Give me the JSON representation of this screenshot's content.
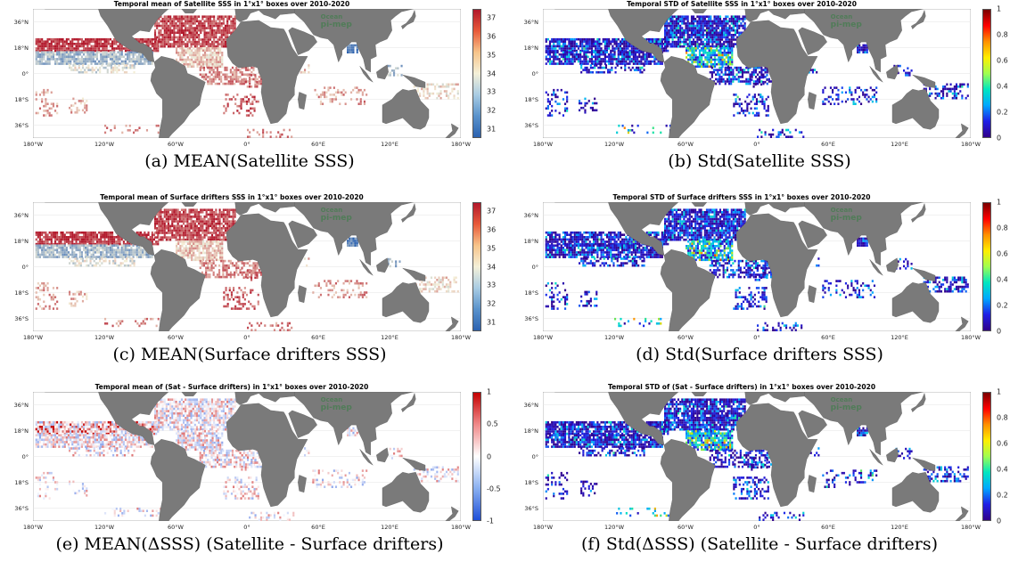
{
  "panels": [
    {
      "title": "Temporal mean of Satellite SSS in 1°x1° boxes over 2010-2020",
      "caption": "(a) MEAN(Satellite SSS)",
      "kind": "mean",
      "colorbar": [
        "37",
        "36",
        "35",
        "34",
        "33",
        "32",
        "31"
      ]
    },
    {
      "title": "Temporal STD of Satellite SSS in 1°x1° boxes over 2010-2020",
      "caption": "(b) Std(Satellite SSS)",
      "kind": "std",
      "colorbar": [
        "1",
        "0.8",
        "0.6",
        "0.4",
        "0.2",
        "0"
      ]
    },
    {
      "title": "Temporal mean of Surface drifters SSS in 1°x1° boxes over 2010-2020",
      "caption": "(c) MEAN(Surface drifters SSS)",
      "kind": "mean",
      "colorbar": [
        "37",
        "36",
        "35",
        "34",
        "33",
        "32",
        "31"
      ]
    },
    {
      "title": "Temporal STD of Surface drifters SSS in 1°x1° boxes over 2010-2020",
      "caption": "(d) Std(Surface drifters SSS)",
      "kind": "std",
      "colorbar": [
        "1",
        "0.8",
        "0.6",
        "0.4",
        "0.2",
        "0"
      ]
    },
    {
      "title": "Temporal mean of (Sat - Surface drifters) in 1°x1° boxes over 2010-2020",
      "caption": "(e) MEAN(ΔSSS) (Satellite - Surface drifters)",
      "kind": "diff",
      "colorbar": [
        "1",
        "0.5",
        "0",
        "-0.5",
        "-1"
      ]
    },
    {
      "title": "Temporal STD of (Sat - Surface drifters) in 1°x1° boxes over 2010-2020",
      "caption": "(f) Std(ΔSSS) (Satellite - Surface drifters)",
      "kind": "std",
      "colorbar": [
        "1",
        "0.8",
        "0.6",
        "0.4",
        "0.2",
        "0"
      ]
    }
  ],
  "x_ticks": [
    "180°W",
    "120°W",
    "60°W",
    "0°",
    "60°E",
    "120°E",
    "180°W"
  ],
  "y_ticks": [
    "36°N",
    "18°N",
    "0°",
    "18°S",
    "36°S"
  ],
  "watermark_lines": [
    "Ocean",
    "pi-mep"
  ],
  "colors": {
    "land": "#7a7a7a",
    "mean_high": "#b2182b",
    "mean_mid": "#f4f0d8",
    "mean_low": "#2c62b0",
    "std_low": "#3b1fd6",
    "std_high": "#c40000",
    "diff_pos": "#c40000",
    "diff_neg": "#1e4fd8"
  }
}
